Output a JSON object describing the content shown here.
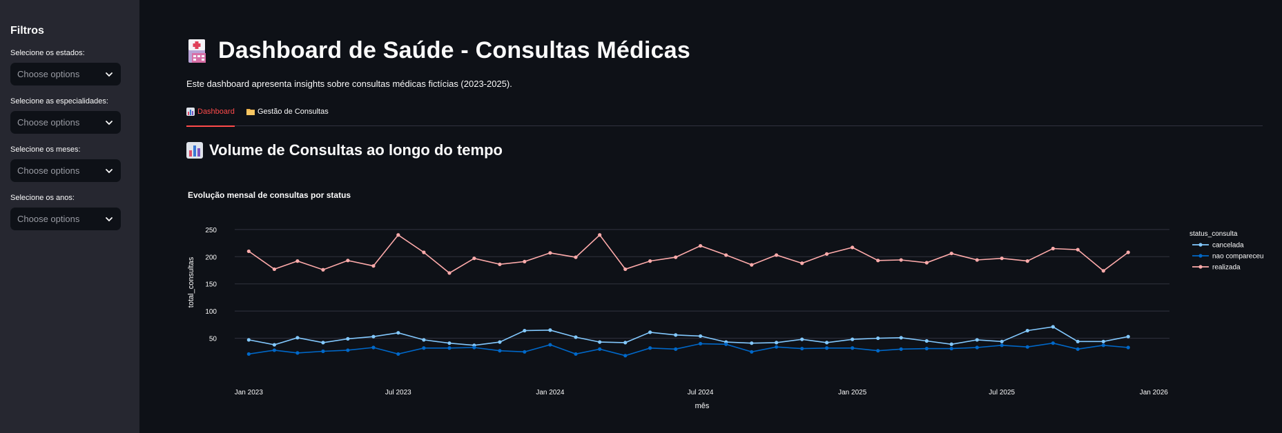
{
  "sidebar": {
    "title": "Filtros",
    "filters": [
      {
        "label": "Selecione os estados:",
        "placeholder": "Choose options"
      },
      {
        "label": "Selecione as especialidades:",
        "placeholder": "Choose options"
      },
      {
        "label": "Selecione os meses:",
        "placeholder": "Choose options"
      },
      {
        "label": "Selecione os anos:",
        "placeholder": "Choose options"
      }
    ]
  },
  "header": {
    "title": "Dashboard de Saúde - Consultas Médicas",
    "subtitle": "Este dashboard apresenta insights sobre consultas médicas fictícias (2023-2025)."
  },
  "tabs": [
    {
      "label": "Dashboard",
      "icon": "bar-chart-icon",
      "active": true
    },
    {
      "label": "Gestão de Consultas",
      "icon": "folder-icon",
      "active": false
    }
  ],
  "section": {
    "title": "Volume de Consultas ao longo do tempo",
    "icon": "bar-chart-icon"
  },
  "colors": {
    "accent": "#ff4b4b",
    "cancelada": "#83c9ff",
    "nao_compareceu": "#0068c9",
    "realizada": "#ffabab"
  },
  "chart_data": {
    "type": "line",
    "title": "Evolução mensal de consultas por status",
    "xlabel": "mês",
    "ylabel": "total_consultas",
    "legend_title": "status_consulta",
    "legend_position": "right",
    "grid": true,
    "ylim": [
      0,
      260
    ],
    "yticks": [
      50,
      100,
      150,
      200,
      250
    ],
    "xticks": [
      "Jan 2023",
      "Jul 2023",
      "Jan 2024",
      "Jul 2024",
      "Jan 2025",
      "Jul 2025",
      "Jan 2026"
    ],
    "x": [
      "2023-01",
      "2023-02",
      "2023-03",
      "2023-04",
      "2023-05",
      "2023-06",
      "2023-07",
      "2023-08",
      "2023-09",
      "2023-10",
      "2023-11",
      "2023-12",
      "2024-01",
      "2024-02",
      "2024-03",
      "2024-04",
      "2024-05",
      "2024-06",
      "2024-07",
      "2024-08",
      "2024-09",
      "2024-10",
      "2024-11",
      "2024-12",
      "2025-01",
      "2025-02",
      "2025-03",
      "2025-04",
      "2025-05",
      "2025-06",
      "2025-07",
      "2025-08",
      "2025-09",
      "2025-10",
      "2025-11",
      "2025-12"
    ],
    "series": [
      {
        "name": "cancelada",
        "color": "#83c9ff",
        "values": [
          47,
          38,
          51,
          42,
          49,
          53,
          60,
          47,
          41,
          37,
          43,
          64,
          65,
          52,
          43,
          42,
          61,
          56,
          54,
          43,
          41,
          42,
          48,
          42,
          48,
          50,
          51,
          45,
          39,
          47,
          44,
          64,
          71,
          44,
          44,
          53
        ]
      },
      {
        "name": "nao compareceu",
        "color": "#0068c9",
        "values": [
          21,
          28,
          23,
          26,
          28,
          33,
          21,
          32,
          32,
          33,
          27,
          25,
          38,
          21,
          30,
          18,
          32,
          30,
          40,
          39,
          25,
          34,
          31,
          32,
          32,
          27,
          30,
          31,
          31,
          33,
          37,
          34,
          41,
          30,
          37,
          33
        ]
      },
      {
        "name": "realizada",
        "color": "#ffabab",
        "values": [
          210,
          177,
          192,
          176,
          193,
          183,
          240,
          208,
          170,
          197,
          186,
          191,
          207,
          199,
          240,
          177,
          192,
          199,
          220,
          203,
          185,
          203,
          188,
          205,
          217,
          193,
          194,
          189,
          206,
          194,
          197,
          192,
          215,
          213,
          174,
          208
        ]
      }
    ]
  }
}
